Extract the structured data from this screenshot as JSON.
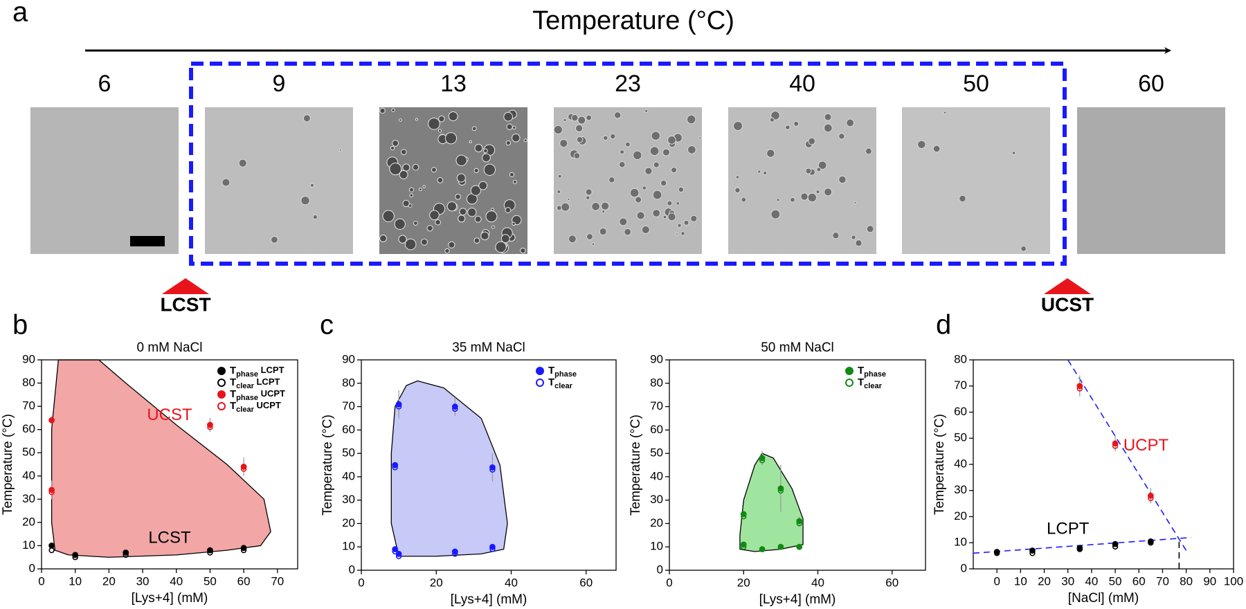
{
  "panel_a": {
    "label": "a",
    "axis_title": "Temperature (°C)",
    "temperatures": [
      6,
      9,
      13,
      23,
      40,
      50,
      60
    ],
    "markers": [
      "LCST",
      "UCST"
    ]
  },
  "chart_data": [
    {
      "panel_label": "b",
      "type": "scatter",
      "title": "0 mM NaCl",
      "x_label": "[Lys+4] (mM)",
      "y_label": "Temperature (°C)",
      "xlim": [
        0,
        76
      ],
      "xticks": [
        0,
        10,
        20,
        30,
        40,
        50,
        60,
        70
      ],
      "ylim": [
        0,
        90
      ],
      "yticks": [
        0,
        10,
        20,
        30,
        40,
        50,
        60,
        70,
        80,
        90
      ],
      "region": {
        "color": "#f2a6a6",
        "x": [
          5,
          3,
          3,
          4,
          8,
          20,
          40,
          55,
          65,
          68,
          66,
          55,
          40,
          25,
          17
        ],
        "y": [
          90,
          60,
          20,
          8,
          6,
          5,
          6,
          8,
          10,
          16,
          30,
          45,
          62,
          80,
          90
        ]
      },
      "series": [
        {
          "name": "Tphase LCPT",
          "color": "#000000",
          "filled": true,
          "x": [
            3,
            10,
            25,
            50,
            60
          ],
          "values": [
            10,
            6,
            7,
            8,
            9
          ],
          "errors": [
            null,
            null,
            null,
            null,
            null
          ]
        },
        {
          "name": "Tclear LCPT",
          "color": "#000000",
          "filled": false,
          "x": [
            3,
            10,
            25,
            50,
            60
          ],
          "values": [
            8,
            5,
            6,
            7,
            8
          ],
          "errors": [
            null,
            null,
            null,
            null,
            null
          ]
        },
        {
          "name": "Tphase UCPT",
          "color": "#e8141c",
          "filled": true,
          "x": [
            3,
            3,
            50,
            60
          ],
          "values": [
            64,
            34,
            62,
            44
          ],
          "errors": [
            2,
            4,
            3,
            4
          ]
        },
        {
          "name": "Tclear UCPT",
          "color": "#e8141c",
          "filled": false,
          "x": [
            3,
            3,
            50,
            60
          ],
          "values": [
            64,
            33,
            61,
            43
          ],
          "errors": [
            null,
            null,
            null,
            null
          ]
        }
      ],
      "annotations": [
        {
          "text": "UCST",
          "color": "#e8141c"
        },
        {
          "text": "LCST",
          "color": "#000000"
        }
      ]
    },
    {
      "panel_label": "c",
      "type": "scatter",
      "title": "35 mM NaCl",
      "x_label": "[Lys+4] (mM)",
      "y_label": "Temperature (°C)",
      "xlim": [
        0,
        68
      ],
      "xticks": [
        0,
        20,
        40,
        60
      ],
      "ylim": [
        0,
        90
      ],
      "yticks": [
        0,
        10,
        20,
        30,
        40,
        50,
        60,
        70,
        80,
        90
      ],
      "region": {
        "color": "#c7c9f6",
        "x": [
          8,
          8,
          9,
          12,
          15,
          22,
          32,
          37,
          39,
          38,
          32,
          20,
          10
        ],
        "y": [
          20,
          50,
          70,
          79,
          81,
          78,
          65,
          45,
          20,
          9,
          7,
          6,
          6
        ]
      },
      "series": [
        {
          "name": "Tphase",
          "color": "#1a1aff",
          "filled": true,
          "x": [
            9,
            10,
            25,
            35,
            9,
            10,
            25,
            35
          ],
          "values": [
            45,
            71,
            70,
            44,
            9,
            7,
            8,
            10
          ],
          "errors": [
            null,
            6,
            4,
            6,
            null,
            null,
            null,
            null
          ]
        },
        {
          "name": "Tclear",
          "color": "#1a1aff",
          "filled": false,
          "x": [
            9,
            10,
            25,
            35,
            9,
            10,
            25,
            35
          ],
          "values": [
            44,
            70,
            69,
            43,
            8,
            6,
            7,
            9
          ],
          "errors": [
            null,
            null,
            null,
            null,
            null,
            null,
            null,
            null
          ]
        }
      ]
    },
    {
      "type": "scatter",
      "title": "50 mM NaCl",
      "x_label": "[Lys+4] (mM)",
      "y_label": "Temperature (°C)",
      "xlim": [
        0,
        69
      ],
      "xticks": [
        0,
        20,
        40,
        60
      ],
      "ylim": [
        0,
        90
      ],
      "yticks": [
        0,
        10,
        20,
        30,
        40,
        50,
        60,
        70,
        80,
        90
      ],
      "region": {
        "color": "#9fe59f",
        "x": [
          19,
          20,
          23,
          25,
          28,
          33,
          36,
          36,
          30,
          23,
          19
        ],
        "y": [
          15,
          30,
          45,
          50,
          48,
          35,
          22,
          11,
          9,
          8,
          9
        ]
      },
      "series": [
        {
          "name": "Tphase",
          "color": "#128a12",
          "filled": true,
          "x": [
            20,
            25,
            30,
            35,
            20,
            25,
            30,
            35
          ],
          "values": [
            24,
            48,
            35,
            21,
            11,
            9,
            10,
            10
          ],
          "errors": [
            null,
            3,
            10,
            2,
            null,
            null,
            null,
            null
          ]
        },
        {
          "name": "Tclear",
          "color": "#128a12",
          "filled": false,
          "x": [
            20,
            25,
            30,
            35,
            20,
            25,
            30,
            35
          ],
          "values": [
            23,
            47,
            34,
            20,
            10,
            9,
            10,
            10
          ],
          "errors": [
            null,
            null,
            null,
            null,
            null,
            null,
            null,
            null
          ]
        }
      ]
    },
    {
      "panel_label": "d",
      "type": "scatter",
      "x_label": "[NaCl] (mM)",
      "y_label": "Temperature (°C)",
      "xlim": [
        -10,
        100
      ],
      "xticks": [
        0,
        10,
        20,
        30,
        40,
        50,
        60,
        70,
        80,
        90,
        100
      ],
      "ylim": [
        0,
        80
      ],
      "yticks": [
        0,
        10,
        20,
        30,
        40,
        50,
        60,
        70,
        80
      ],
      "series": [
        {
          "color": "#000000",
          "filled": true,
          "x": [
            0,
            15,
            35,
            50,
            65
          ],
          "values": [
            6.5,
            7,
            8,
            9.5,
            10.5
          ],
          "errors": [
            null,
            null,
            null,
            null,
            null
          ]
        },
        {
          "color": "#000000",
          "filled": false,
          "x": [
            0,
            15,
            35,
            50,
            65
          ],
          "values": [
            6,
            6,
            7.5,
            8.5,
            10
          ],
          "errors": [
            null,
            null,
            null,
            null,
            null
          ]
        },
        {
          "color": "#e8141c",
          "filled": true,
          "x": [
            35,
            50,
            65
          ],
          "values": [
            70,
            48,
            28
          ],
          "errors": [
            4,
            3,
            3
          ]
        },
        {
          "color": "#e8141c",
          "filled": false,
          "x": [
            35,
            50,
            65
          ],
          "values": [
            69,
            47,
            27
          ],
          "errors": [
            null,
            null,
            null
          ]
        }
      ],
      "fits": [
        {
          "color": "#1a1aff",
          "x": [
            -10,
            82
          ],
          "y": [
            6,
            12
          ]
        },
        {
          "color": "#1a1aff",
          "x": [
            30,
            80
          ],
          "y": [
            80,
            7
          ]
        },
        {
          "color": "#000000",
          "x": [
            77,
            77
          ],
          "y": [
            0,
            11.5
          ]
        }
      ],
      "annotations": [
        {
          "text": "UCPT",
          "color": "#e8141c"
        },
        {
          "text": "LCPT",
          "color": "#000000"
        }
      ]
    }
  ]
}
